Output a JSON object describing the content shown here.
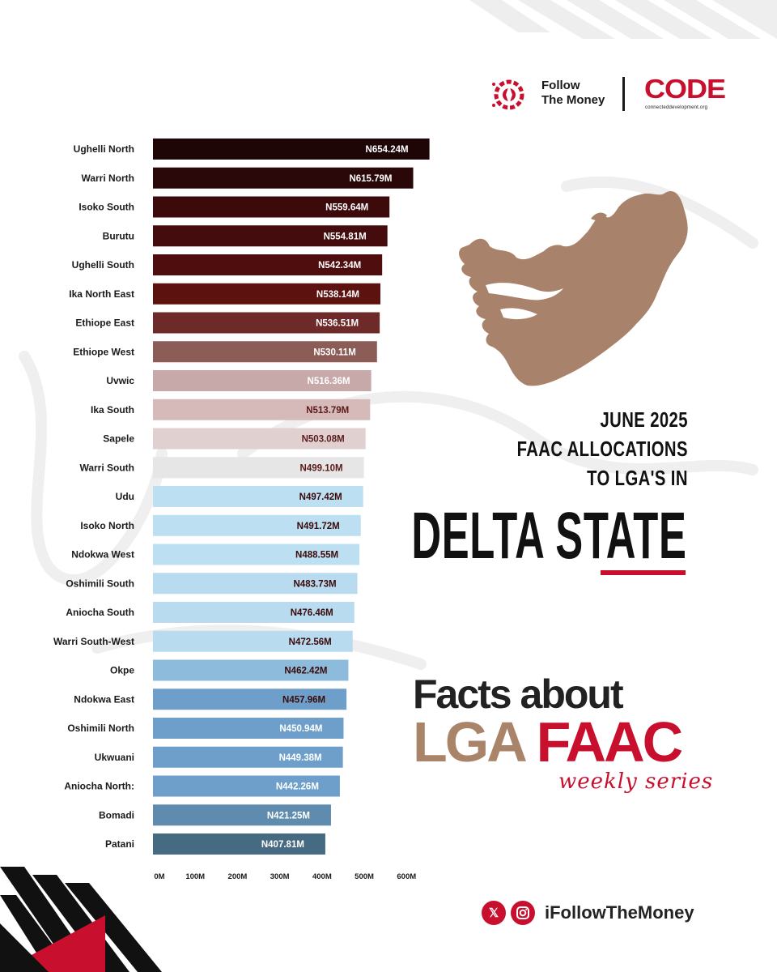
{
  "brand": {
    "ftm_line1": "Follow",
    "ftm_line2": "The Money",
    "code_name": "CODE",
    "code_site": "connecteddevelopment.org",
    "accent_color": "#c8102e"
  },
  "headline": {
    "line1": "JUNE 2025",
    "line2": "FAAC ALLOCATIONS",
    "line3": "TO LGA'S IN",
    "state": "DELTA STATE"
  },
  "series_banner": {
    "facts_about": "Facts about",
    "lga": "LGA",
    "faac": "FAAC",
    "weekly": "weekly series"
  },
  "social": {
    "x_icon": "x-logo-icon",
    "instagram_icon": "instagram-icon",
    "handle": "iFollowTheMoney"
  },
  "chart_data": {
    "type": "bar",
    "orientation": "horizontal",
    "categories": [
      "Ughelli North",
      "Warri North",
      "Isoko South",
      "Burutu",
      "Ughelli South",
      "Ika North East",
      "Ethiope East",
      "Ethiope West",
      "Uvwic",
      "Ika South",
      "Sapele",
      "Warri South",
      "Udu",
      "Isoko North",
      "Ndokwa West",
      "Oshimili South",
      "Aniocha South",
      "Warri South-West",
      "Okpe",
      "Ndokwa East",
      "Oshimili North",
      "Ukwuani",
      "Aniocha North:",
      "Bomadi",
      "Patani"
    ],
    "values": [
      654.24,
      615.79,
      559.64,
      554.81,
      542.34,
      538.14,
      536.51,
      530.11,
      516.36,
      513.79,
      503.08,
      499.1,
      497.42,
      491.72,
      488.55,
      483.73,
      476.46,
      472.56,
      462.42,
      457.96,
      450.94,
      449.38,
      442.26,
      421.25,
      407.81
    ],
    "value_labels": [
      "N654.24M",
      "N615.79M",
      "N559.64M",
      "N554.81M",
      "N542.34M",
      "N538.14M",
      "N536.51M",
      "N530.11M",
      "N516.36M",
      "N513.79M",
      "N503.08M",
      "N499.10M",
      "N497.42M",
      "N491.72M",
      "N488.55M",
      "N483.73M",
      "N476.46M",
      "N472.56M",
      "N462.42M",
      "N457.96M",
      "N450.94M",
      "N449.38M",
      "N442.26M",
      "N421.25M",
      "N407.81M"
    ],
    "bar_colors": [
      "#1e0506",
      "#2a0708",
      "#3d0a0b",
      "#440c0c",
      "#4f0e0d",
      "#5c120f",
      "#6e2a28",
      "#8c5c57",
      "#c7a9aa",
      "#d6baba",
      "#e1d0d0",
      "#e6e6e6",
      "#bcdff2",
      "#bcdff2",
      "#bcdff2",
      "#b8dbf0",
      "#b8dbf0",
      "#b8dbf0",
      "#8dbbdb",
      "#6d9fca",
      "#6d9fca",
      "#6d9fca",
      "#6d9fca",
      "#5f8cae",
      "#456a82"
    ],
    "value_label_colors": [
      "#ffffff",
      "#ffffff",
      "#ffffff",
      "#ffffff",
      "#ffffff",
      "#ffffff",
      "#ffffff",
      "#ffffff",
      "#ffffff",
      "#5a1a1a",
      "#5a1a1a",
      "#5a1a1a",
      "#3a0a0a",
      "#3a0a0a",
      "#3a0a0a",
      "#3a0a0a",
      "#3a0a0a",
      "#3a0a0a",
      "#3a0a0a",
      "#3a0a0a",
      "#ffffff",
      "#ffffff",
      "#ffffff",
      "#ffffff",
      "#ffffff"
    ],
    "x_ticks": [
      0,
      100,
      200,
      300,
      400,
      500,
      600
    ],
    "x_tick_labels": [
      "0M",
      "100M",
      "200M",
      "300M",
      "400M",
      "500M",
      "600M"
    ],
    "xlim": [
      0,
      655
    ],
    "grid": false,
    "title": "",
    "xlabel": "",
    "ylabel": ""
  }
}
